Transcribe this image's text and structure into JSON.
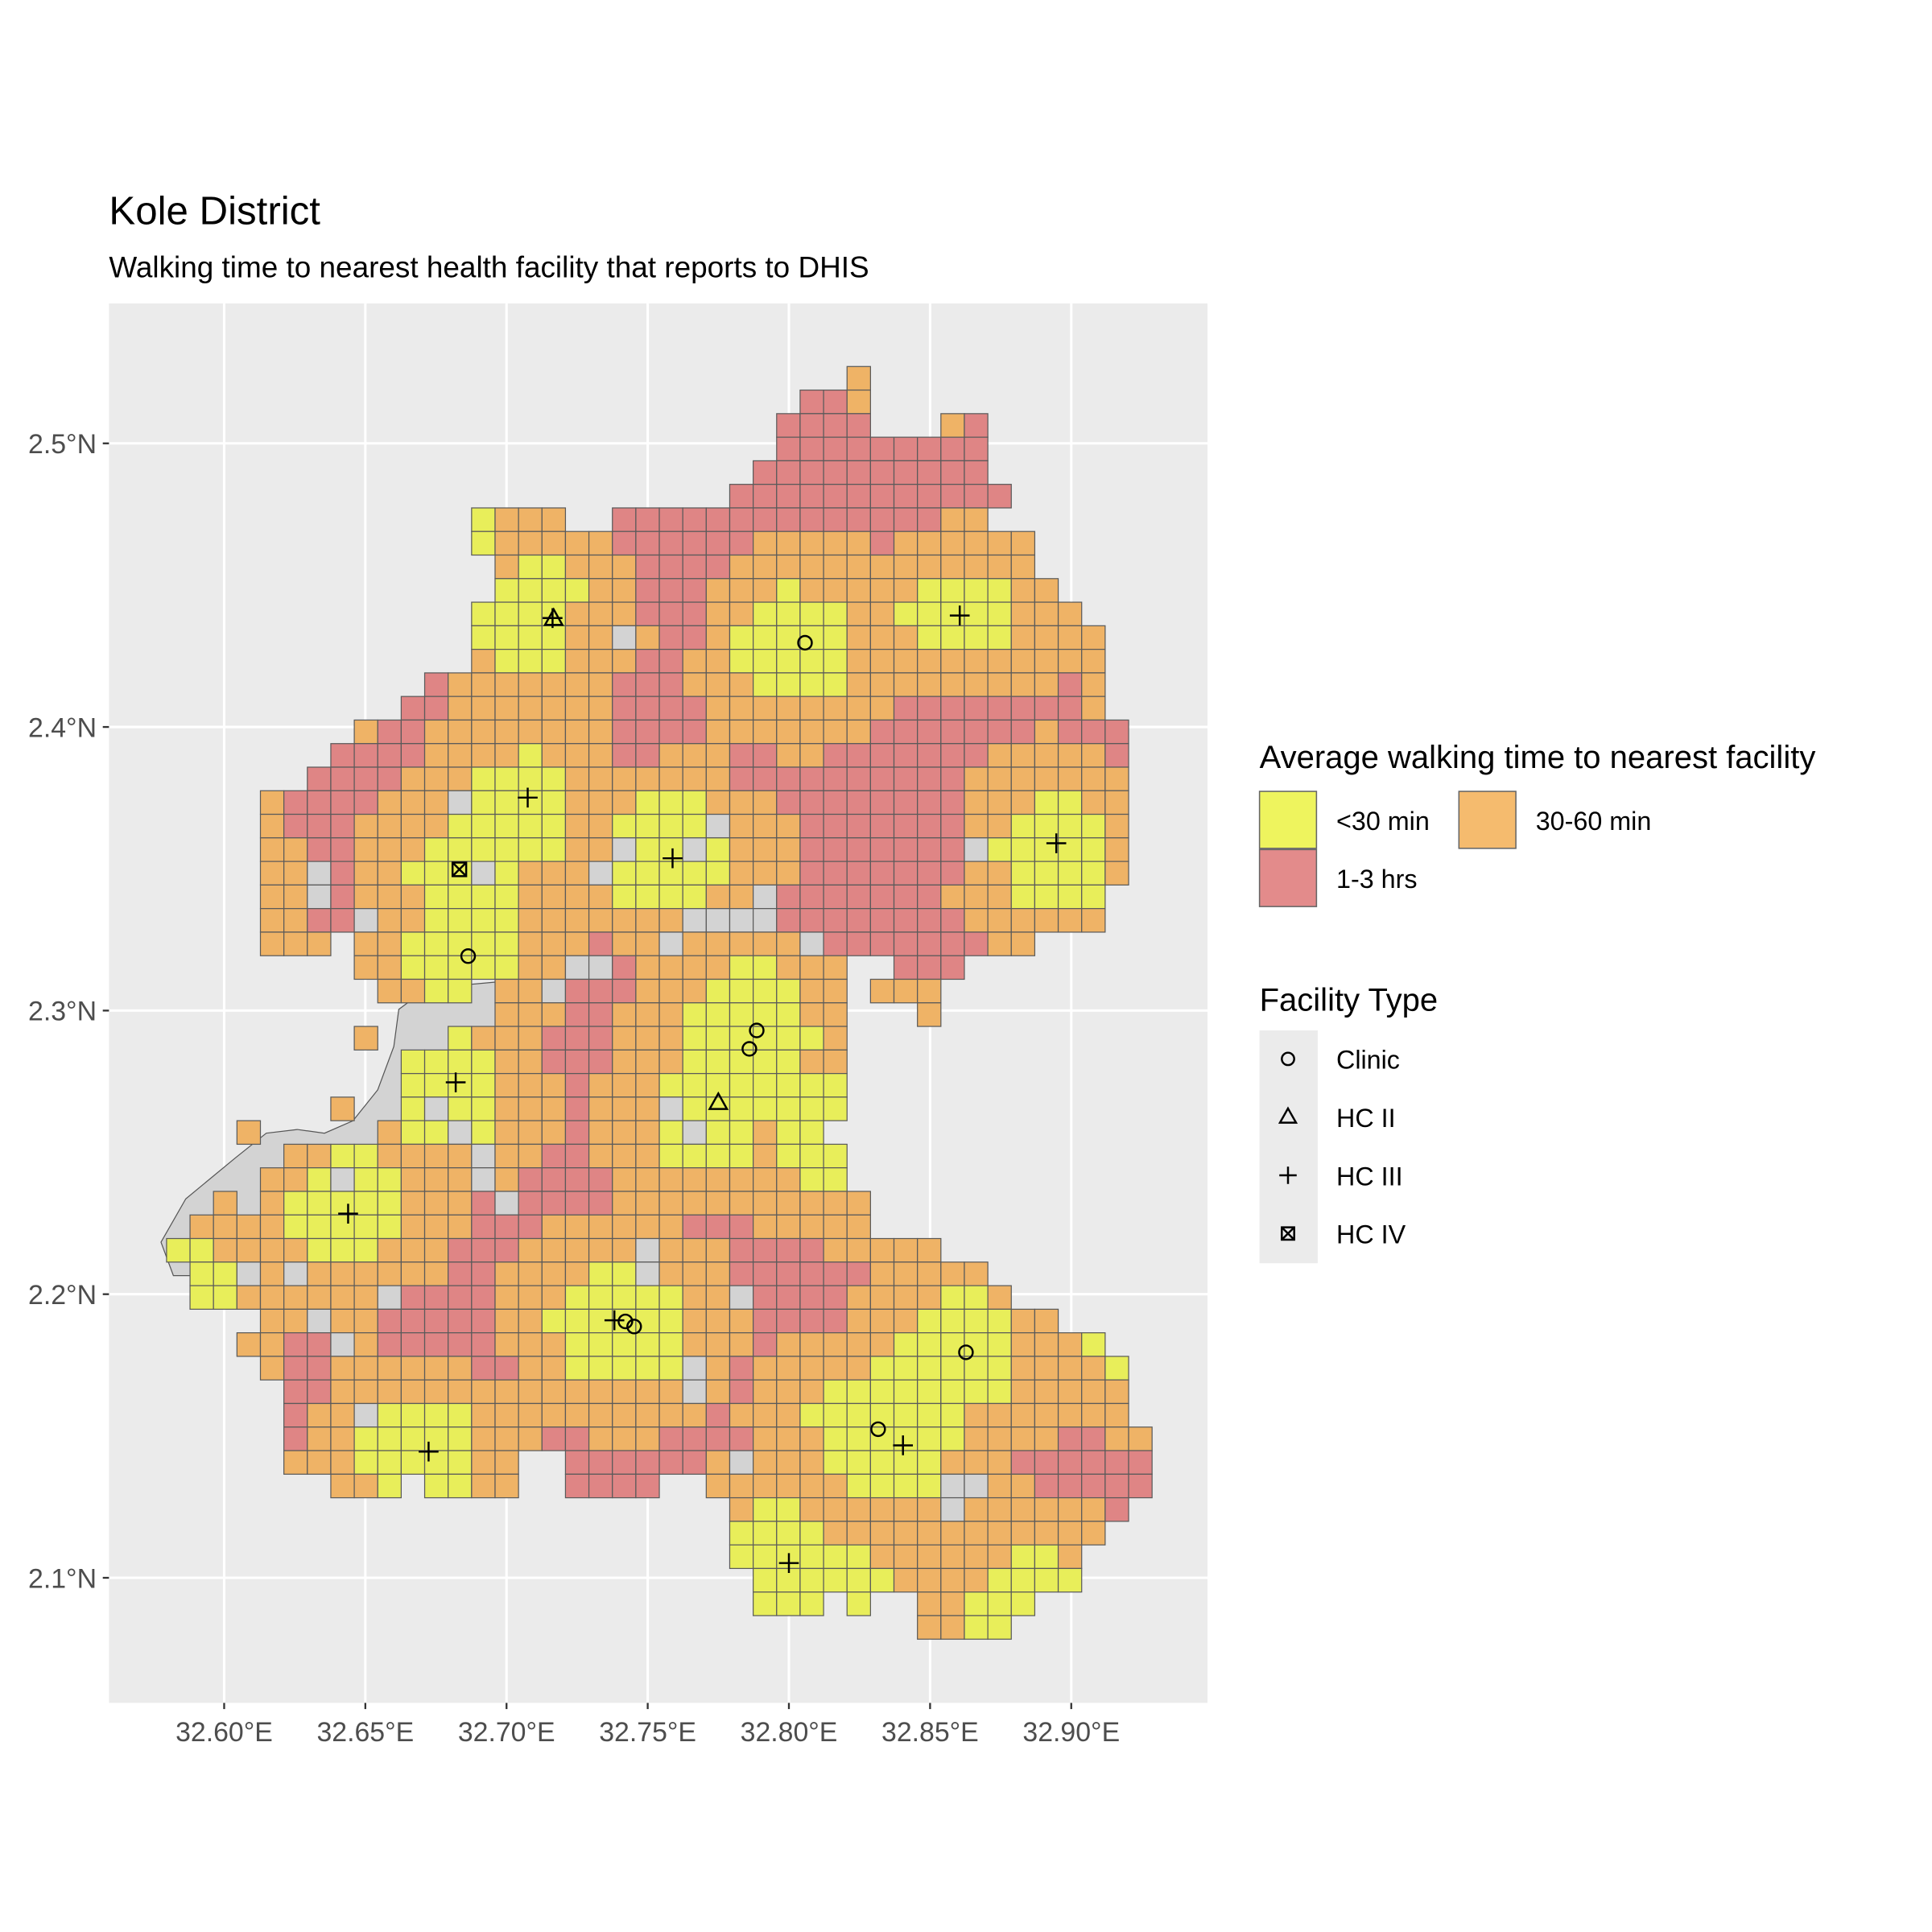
{
  "chart_data": {
    "type": "map",
    "title": "Kole District",
    "subtitle": "Walking time to nearest health facility that reports to DHIS",
    "xlabel": "",
    "ylabel": "",
    "xlim": [
      32.559,
      32.948
    ],
    "ylim": [
      2.056,
      2.549
    ],
    "grid_lines": true,
    "x_ticks": [
      {
        "value": 32.6,
        "label": "32.60°E"
      },
      {
        "value": 32.65,
        "label": "32.65°E"
      },
      {
        "value": 32.7,
        "label": "32.70°E"
      },
      {
        "value": 32.75,
        "label": "32.75°E"
      },
      {
        "value": 32.8,
        "label": "32.80°E"
      },
      {
        "value": 32.85,
        "label": "32.85°E"
      },
      {
        "value": 32.9,
        "label": "32.90°E"
      }
    ],
    "y_ticks": [
      {
        "value": 2.1,
        "label": "2.1°N"
      },
      {
        "value": 2.2,
        "label": "2.2°N"
      },
      {
        "value": 2.3,
        "label": "2.3°N"
      },
      {
        "value": 2.4,
        "label": "2.4°N"
      },
      {
        "value": 2.5,
        "label": "2.5°N"
      }
    ],
    "fill_legend": {
      "title": "Average walking time to nearest facility",
      "position": "right",
      "categories": [
        {
          "key": "Y",
          "label": "<30 min",
          "color": "#EEF45E",
          "map_color": "#E8EE5A"
        },
        {
          "key": "O",
          "label": "30-60 min",
          "color": "#F5BB6E",
          "map_color": "#EFB366"
        },
        {
          "key": "R",
          "label": "1-3 hrs",
          "color": "#E38B8B",
          "map_color": "#DF8585"
        }
      ],
      "no_data_color": "#D3D3D3"
    },
    "shape_legend": {
      "title": "Facility Type",
      "items": [
        {
          "type": "clinic",
          "label": "Clinic"
        },
        {
          "type": "hc2",
          "label": "HC II"
        },
        {
          "type": "hc3",
          "label": "HC III"
        },
        {
          "type": "hc4",
          "label": "HC IV"
        }
      ]
    },
    "grid": {
      "lon0": 32.5796,
      "lat0": 2.5271,
      "cell_deg": 0.00831,
      "encoding": "startCol:cells; Y=<30 min, O=30-60 min, R=1-3 hrs, G=no data, .=none",
      "rows": [
        "29:O",
        "27:RRO",
        "26:RRRR...OR",
        "26:RRRRRRRRR",
        "25:RRRRRRRRRR",
        "24:RRRRRRRRRRRR",
        "13:YOOO..RRRRRRRRRRRRRROO",
        "13:YOOOOORRRRRROOOOOROOOOOO",
        "14:OYYOOORRRROOOOOOOOOOOOO",
        "14:YYYYOORRROOOYOOOOOYYYYOO",
        "13:YYYYOOORRROOYYYYOOYYYYYOOO",
        "13:YYYYOOGORROYYYYYOOOYYYYOOOO",
        "13:OYYYOOORROOYYYYYOOOOOOOOOOO",
        "11:ROOOOOOORRROOOYYYYOOOOOOOOORO",
        "10:RROOOOOOORRRROOOOOOOORRRRRRRRO",
        "8:ORROOOOOOOORRRROOOOOOORRRRRRRORRR",
        "7:RRRROOOOYOOORROOORROORRRRRRROOOOOR",
        "6:RRRROOOYYYYOOOOOOORRRRRRRRRROOOOOOO",
        "4:ORRRROOOGYYYYOOOYYYOOORRRRRRRROOOYYOO",
        "4:ORRROOOOYYYYYOOYYYYGOOORRRRRRROOYYYYO",
        "4:OORROOOYYYYYYOOGYYGYOOORRRRRRRGYYYYYO",
        "4:OOGROOYYYGYOOOGYYYYYOOORRRRRRROOYYYYO",
        "4:OOGROOOYYYYOOOOYYYYOOGRRRRRRROOOYYYY",
        "4:OORRGOOYYYYOOOOOOOGGGGRRRRRRRROOOOOO",
        "4:OOO.OOYYYYYOOOROOGOOOOOGRRRRRRROO",
        "8:OOYYYYYOOGGROOOOYYOOO..RRR",
        "9:OOYY.OOGRRROOOYYYYOO.OOO",
        "14:OOORROOOYYYYYOO...O",
        "8:O...YOOORRROOOYYYYYYO",
        "10:YYYYOORRROOOYYYYYOO",
        "10:YYYYOOOROOOYYYYYYYY",
        "7:O..YGYYOOOROOOGYYYYYYY",
        "3:O.....OYYGYOOOROOOYGYYOYY",
        "5:OOYYOOOOGOORROOOYYYYOYYY",
        "4:OOYGYYOOOGORRRROOOOOOOOYY",
        "2:O.OYYYYYOOORGRRRROOOOOOOOOOO",
        "1:OOOOYYYYYOOORRROOOOOORRROOOOO",
        "0:YYOOOOYYYOOORRROOOOOGOOORRRROOOOO",
        "1:YYGOGOOOOOORROOOOYYGOOORRRRRROOOOO",
        "1:YYOOOOOOGRRRROOOYYYYYOOGRRRROOOOYYO",
        "4:OOGOORRRRROOYYYYYYOOORRRROOOYYYYOO",
        "3:OORRGORRRRROOOYYYYYOOOROOOOOYYYYYOOOY",
        "4:ORROOOOOORROOYYYYYGOROOOOOYYYYYYOOOOY",
        "5:RROOOOOOOOOOOOOOOGOROOOYYYYYYYYOOOOO",
        "5:ROOGYYYYOOOOOOOOOOROOOYYYYYYYOOOOOOO",
        "5:ROOYYYYYOOORROOORRRROOOYYYYYYOOOORROO",
        "5:OOOYYYYYOO..RRRRRROGOOOYYYYYOOORRRRRR",
        "7:OOY.YYOO..RRRR..OOOOOOYYYYGGOORRRRR",
        "24:OYYOOOOOOGOOOOOOR",
        "24:YYYYOOOOOOOOOOOO",
        "24:YYYYYYOOOOOOYYO",
        "25:YYYYYYOOOOYYYY",
        "25:YYY.Y..OOYYY",
        "32:OOYY"
      ]
    },
    "facilities": [
      {
        "type": "hc2",
        "lon": 32.7167,
        "lat": 2.4384
      },
      {
        "type": "hc3",
        "lon": 32.7163,
        "lat": 2.4384
      },
      {
        "type": "clinic",
        "lon": 32.8057,
        "lat": 2.4297
      },
      {
        "type": "hc3",
        "lon": 32.8605,
        "lat": 2.4393
      },
      {
        "type": "hc3",
        "lon": 32.7075,
        "lat": 2.3751
      },
      {
        "type": "hc3",
        "lon": 32.7588,
        "lat": 2.3537
      },
      {
        "type": "hc4",
        "lon": 32.6833,
        "lat": 2.3498
      },
      {
        "type": "hc3",
        "lon": 32.8947,
        "lat": 2.359
      },
      {
        "type": "clinic",
        "lon": 32.6864,
        "lat": 2.3192
      },
      {
        "type": "clinic",
        "lon": 32.7886,
        "lat": 2.293
      },
      {
        "type": "clinic",
        "lon": 32.786,
        "lat": 2.2865
      },
      {
        "type": "hc2",
        "lon": 32.775,
        "lat": 2.2677
      },
      {
        "type": "hc3",
        "lon": 32.682,
        "lat": 2.2747
      },
      {
        "type": "hc3",
        "lon": 32.6439,
        "lat": 2.2284
      },
      {
        "type": "hc3",
        "lon": 32.7382,
        "lat": 2.1908
      },
      {
        "type": "clinic",
        "lon": 32.7421,
        "lat": 2.1904
      },
      {
        "type": "clinic",
        "lon": 32.7452,
        "lat": 2.1886
      },
      {
        "type": "clinic",
        "lon": 32.8627,
        "lat": 2.1795
      },
      {
        "type": "clinic",
        "lon": 32.8316,
        "lat": 2.1524
      },
      {
        "type": "hc3",
        "lon": 32.8404,
        "lat": 2.1467
      },
      {
        "type": "hc3",
        "lon": 32.6724,
        "lat": 2.1445
      },
      {
        "type": "hc3",
        "lon": 32.8,
        "lat": 2.1052
      }
    ]
  }
}
